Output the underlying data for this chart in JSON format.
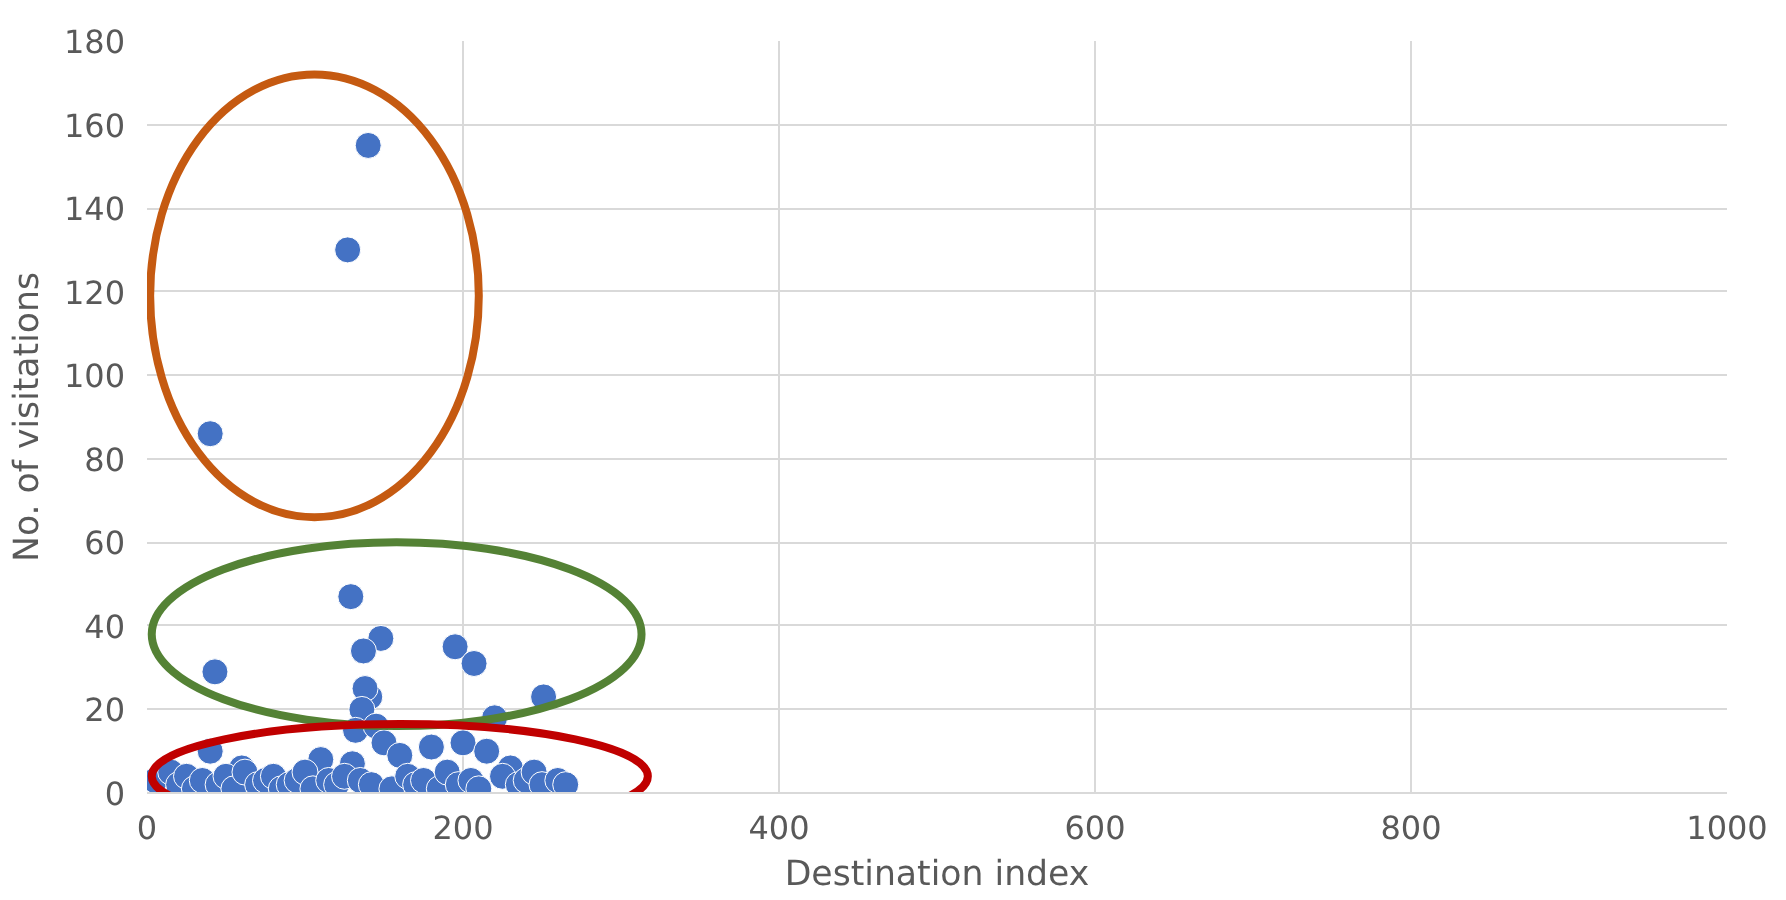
{
  "chart_data": {
    "type": "scatter",
    "xlabel": "Destination index",
    "ylabel": "No. of visitations",
    "xlim": [
      0,
      1000
    ],
    "xticks": [
      0,
      200,
      400,
      600,
      800,
      1000
    ],
    "ylim": [
      0,
      180
    ],
    "yticks": [
      0,
      20,
      40,
      60,
      80,
      100,
      120,
      140,
      160,
      180
    ],
    "grid": true,
    "marker": "circle",
    "color": "#4472c4",
    "x": [
      40,
      127,
      140,
      43,
      129,
      148,
      137,
      195,
      207,
      141,
      138,
      220,
      251,
      136,
      132,
      145,
      150,
      180,
      200,
      215,
      40,
      60,
      110,
      130,
      160,
      230,
      5,
      15,
      20,
      25,
      30,
      35,
      45,
      50,
      55,
      62,
      70,
      75,
      80,
      85,
      90,
      95,
      100,
      105,
      115,
      120,
      125,
      135,
      142,
      155,
      165,
      170,
      175,
      185,
      190,
      197,
      205,
      210,
      225,
      235,
      240,
      245,
      250,
      260,
      265
    ],
    "values": [
      86,
      130,
      155,
      29,
      47,
      37,
      34,
      35,
      31,
      23,
      25,
      18,
      23,
      20,
      15,
      16,
      12,
      11,
      12,
      10,
      10,
      6,
      8,
      7,
      9,
      6,
      3,
      5,
      2,
      4,
      1,
      3,
      2,
      4,
      1,
      5,
      2,
      3,
      4,
      1,
      2,
      3,
      5,
      1,
      3,
      2,
      4,
      3,
      2,
      1,
      4,
      2,
      3,
      1,
      5,
      2,
      3,
      1,
      4,
      2,
      3,
      5,
      2,
      3,
      2
    ]
  }
}
